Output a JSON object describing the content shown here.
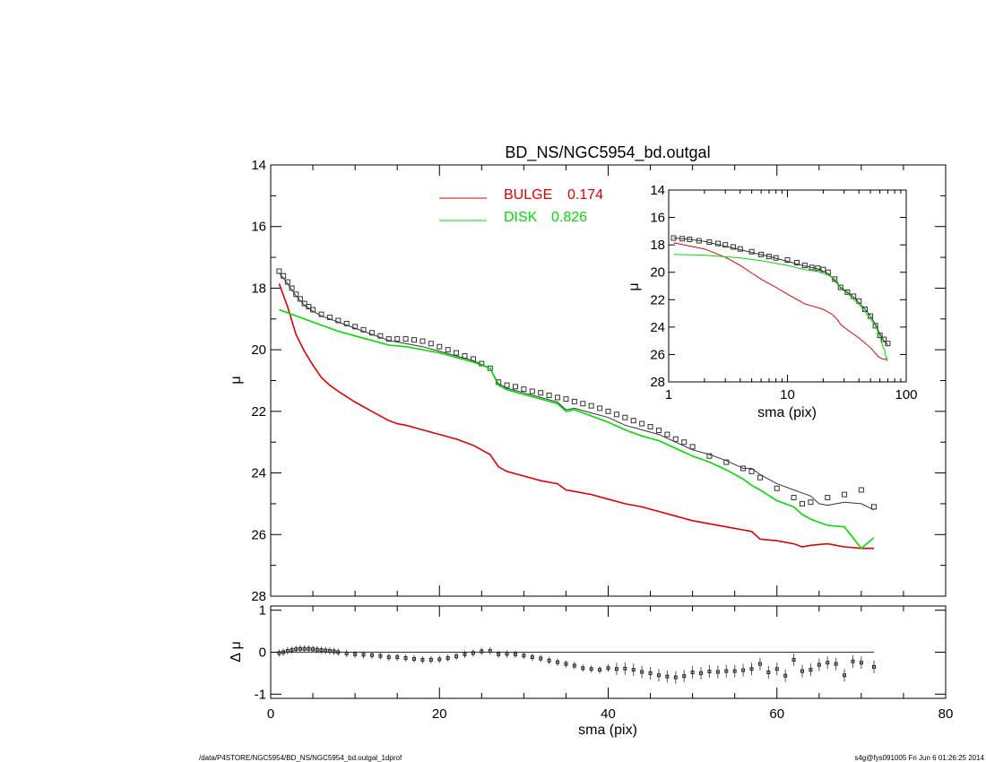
{
  "chart_data": [
    {
      "panel": "main",
      "type": "line",
      "title": "BD_NS/NGC5954_bd.outgal",
      "xlabel": "",
      "ylabel": "μ",
      "xlim": [
        0,
        80
      ],
      "ylim": [
        28,
        14
      ],
      "y_inverted": true,
      "y_ticks": [
        14,
        16,
        18,
        20,
        22,
        24,
        26,
        28
      ],
      "legend": [
        {
          "label": "BULGE",
          "value": "0.174",
          "color": "#e00000"
        },
        {
          "label": "DISK",
          "value": "0.826",
          "color": "#00dd00"
        }
      ],
      "legend_position": "top-center",
      "series": [
        {
          "name": "data",
          "style": "markers",
          "color": "#000000",
          "x": [
            1,
            1.5,
            2,
            2.5,
            3,
            3.5,
            4,
            4.5,
            5,
            6,
            7,
            8,
            9,
            10,
            11,
            12,
            13,
            14,
            15,
            16,
            17,
            18,
            19,
            20,
            21,
            22,
            23,
            24,
            25,
            26,
            27,
            28,
            29,
            30,
            31,
            32,
            33,
            34,
            35,
            36,
            37,
            38,
            39,
            40,
            41,
            42,
            43,
            44,
            45,
            46,
            47,
            48,
            49,
            50,
            52,
            54,
            56,
            57,
            58,
            60,
            62,
            63,
            64,
            66,
            68,
            70,
            71.5
          ],
          "y": [
            17.45,
            17.6,
            17.8,
            18.0,
            18.2,
            18.35,
            18.5,
            18.6,
            18.7,
            18.85,
            18.95,
            19.05,
            19.15,
            19.25,
            19.35,
            19.45,
            19.55,
            19.65,
            19.65,
            19.65,
            19.68,
            19.72,
            19.8,
            19.9,
            20.0,
            20.1,
            20.2,
            20.3,
            20.45,
            20.6,
            21.05,
            21.15,
            21.2,
            21.28,
            21.35,
            21.4,
            21.48,
            21.55,
            21.6,
            21.68,
            21.75,
            21.82,
            21.9,
            22.0,
            22.1,
            22.2,
            22.3,
            22.4,
            22.5,
            22.62,
            22.75,
            22.9,
            23.0,
            23.15,
            23.45,
            23.65,
            23.85,
            23.95,
            24.15,
            24.5,
            24.8,
            25.0,
            24.95,
            24.8,
            24.7,
            24.55,
            25.1
          ]
        },
        {
          "name": "model",
          "style": "line",
          "color": "#333333",
          "x": [
            1,
            2,
            3,
            4,
            5,
            6,
            7,
            8,
            10,
            12,
            14,
            16,
            18,
            20,
            22,
            24,
            26,
            27,
            28,
            30,
            32,
            34,
            35,
            36,
            38,
            40,
            42,
            44,
            46,
            48,
            50,
            52,
            54,
            56,
            57,
            58,
            60,
            62,
            64,
            65,
            66,
            68,
            70,
            71.5
          ],
          "y": [
            17.5,
            17.85,
            18.25,
            18.55,
            18.75,
            18.9,
            19.0,
            19.1,
            19.3,
            19.5,
            19.7,
            19.8,
            19.9,
            20.05,
            20.2,
            20.35,
            20.6,
            21.1,
            21.25,
            21.4,
            21.55,
            21.7,
            21.95,
            21.9,
            22.05,
            22.2,
            22.45,
            22.6,
            22.75,
            23.0,
            23.25,
            23.4,
            23.6,
            23.85,
            23.85,
            24.05,
            24.35,
            24.55,
            24.75,
            25.0,
            25.05,
            24.95,
            25.0,
            25.2
          ]
        },
        {
          "name": "BULGE 0.174",
          "style": "line",
          "color": "#e00000",
          "x": [
            1,
            2,
            3,
            4,
            5,
            6,
            7,
            8,
            10,
            12,
            14,
            14.5,
            15,
            16,
            18,
            20,
            22,
            24,
            26,
            27,
            28,
            30,
            32,
            34,
            35,
            36,
            38,
            40,
            42,
            44,
            46,
            48,
            50,
            52,
            54,
            56,
            57,
            58,
            60,
            62,
            63,
            64,
            66,
            68,
            70,
            71.5
          ],
          "y": [
            17.85,
            18.6,
            19.5,
            20.05,
            20.5,
            20.9,
            21.15,
            21.35,
            21.7,
            22.0,
            22.3,
            22.35,
            22.4,
            22.45,
            22.6,
            22.75,
            22.9,
            23.1,
            23.4,
            23.8,
            23.95,
            24.1,
            24.25,
            24.35,
            24.55,
            24.6,
            24.7,
            24.85,
            25.0,
            25.1,
            25.25,
            25.4,
            25.55,
            25.65,
            25.75,
            25.85,
            25.9,
            26.15,
            26.2,
            26.3,
            26.4,
            26.35,
            26.3,
            26.4,
            26.45,
            26.45
          ]
        },
        {
          "name": "DISK 0.826",
          "style": "line",
          "color": "#00dd00",
          "x": [
            1,
            2,
            4,
            6,
            8,
            10,
            12,
            14,
            16,
            18,
            20,
            22,
            24,
            26,
            27,
            28,
            30,
            32,
            34,
            35,
            36,
            38,
            40,
            42,
            44,
            46,
            48,
            50,
            52,
            54,
            56,
            57,
            58,
            60,
            62,
            63,
            64,
            66,
            68,
            70,
            71.5
          ],
          "y": [
            18.7,
            18.8,
            19.0,
            19.2,
            19.4,
            19.55,
            19.7,
            19.85,
            19.9,
            20.0,
            20.1,
            20.25,
            20.4,
            20.6,
            21.15,
            21.3,
            21.45,
            21.6,
            21.75,
            22.0,
            21.95,
            22.15,
            22.35,
            22.6,
            22.8,
            22.95,
            23.2,
            23.45,
            23.65,
            23.9,
            24.2,
            24.4,
            24.55,
            24.9,
            25.1,
            25.35,
            25.5,
            25.7,
            25.75,
            26.45,
            26.1
          ]
        }
      ]
    },
    {
      "panel": "inset",
      "type": "line",
      "xlabel": "sma (pix)",
      "ylabel": "μ",
      "x_scale": "log",
      "xlim": [
        1,
        100
      ],
      "ylim": [
        28,
        14
      ],
      "y_inverted": true,
      "x_tick_labels": [
        "1",
        "10",
        "100"
      ],
      "y_ticks": [
        14,
        16,
        18,
        20,
        22,
        24,
        26,
        28
      ],
      "series": [
        {
          "name": "data",
          "style": "markers",
          "color": "#000000",
          "x": [
            1.1,
            1.3,
            1.5,
            1.8,
            2.2,
            2.6,
            3,
            3.5,
            4,
            5,
            6,
            7,
            8,
            10,
            12,
            14,
            16,
            18,
            20,
            22,
            25,
            28,
            32,
            36,
            40,
            45,
            50,
            55,
            60,
            65,
            70
          ],
          "y": [
            17.5,
            17.55,
            17.6,
            17.7,
            17.8,
            17.9,
            18.0,
            18.15,
            18.3,
            18.5,
            18.7,
            18.85,
            18.95,
            19.1,
            19.3,
            19.5,
            19.65,
            19.7,
            19.8,
            20.0,
            20.5,
            21.1,
            21.45,
            21.75,
            22.1,
            22.7,
            23.2,
            23.9,
            24.6,
            24.9,
            25.2
          ]
        },
        {
          "name": "model",
          "style": "line",
          "color": "#333333",
          "x": [
            1.1,
            1.5,
            2,
            3,
            4,
            5,
            7,
            10,
            14,
            18,
            22,
            25,
            28,
            32,
            36,
            40,
            45,
            50,
            55,
            60,
            65,
            70
          ],
          "y": [
            17.5,
            17.6,
            17.75,
            18.1,
            18.35,
            18.55,
            18.85,
            19.2,
            19.55,
            19.75,
            20.1,
            20.6,
            21.1,
            21.45,
            21.8,
            22.2,
            22.7,
            23.2,
            23.8,
            24.5,
            25.0,
            25.3
          ]
        },
        {
          "name": "BULGE",
          "style": "line",
          "color": "#e00000",
          "x": [
            1.1,
            2,
            3,
            4,
            5,
            6,
            8,
            10,
            14,
            16,
            20,
            24,
            26,
            28,
            32,
            40,
            50,
            58,
            62,
            66,
            70
          ],
          "y": [
            17.85,
            18.3,
            18.9,
            19.5,
            20.05,
            20.5,
            21.1,
            21.6,
            22.3,
            22.45,
            22.7,
            23.1,
            23.4,
            23.8,
            24.2,
            24.8,
            25.5,
            26.15,
            26.3,
            26.35,
            26.45
          ]
        },
        {
          "name": "DISK",
          "style": "line",
          "color": "#00dd00",
          "x": [
            1.1,
            2,
            4,
            6,
            8,
            10,
            14,
            18,
            22,
            26,
            28,
            32,
            36,
            40,
            45,
            50,
            55,
            60,
            64,
            66,
            68,
            70
          ],
          "y": [
            18.7,
            18.75,
            18.95,
            19.15,
            19.35,
            19.5,
            19.8,
            19.95,
            20.2,
            20.6,
            21.2,
            21.55,
            21.95,
            22.35,
            22.9,
            23.4,
            23.9,
            24.7,
            25.5,
            25.7,
            26.4,
            26.2
          ]
        }
      ]
    },
    {
      "panel": "residual",
      "type": "scatter",
      "xlabel": "sma (pix)",
      "ylabel": "Δ μ",
      "xlim": [
        0,
        80
      ],
      "ylim": [
        -1.1,
        1.1
      ],
      "x_ticks": [
        0,
        20,
        40,
        60,
        80
      ],
      "y_ticks": [
        -1,
        0,
        1
      ],
      "zero_line": true,
      "series": [
        {
          "name": "residuals",
          "style": "markers-with-errorbars",
          "color": "#000000",
          "x": [
            1,
            1.5,
            2,
            2.5,
            3,
            3.5,
            4,
            4.5,
            5,
            5.5,
            6,
            6.5,
            7,
            7.5,
            8,
            9,
            10,
            11,
            12,
            13,
            14,
            15,
            16,
            17,
            18,
            19,
            20,
            21,
            22,
            23,
            24,
            25,
            26,
            27,
            28,
            29,
            30,
            31,
            32,
            33,
            34,
            35,
            36,
            37,
            38,
            39,
            40,
            41,
            42,
            43,
            44,
            45,
            46,
            47,
            48,
            49,
            50,
            51,
            52,
            53,
            54,
            55,
            56,
            57,
            58,
            59,
            60,
            61,
            62,
            63,
            64,
            65,
            66,
            67,
            68,
            69,
            70,
            71.5
          ],
          "y": [
            -0.02,
            0.0,
            0.03,
            0.05,
            0.07,
            0.08,
            0.08,
            0.08,
            0.07,
            0.06,
            0.05,
            0.04,
            0.03,
            0.02,
            0.0,
            -0.03,
            -0.05,
            -0.06,
            -0.07,
            -0.09,
            -0.12,
            -0.12,
            -0.14,
            -0.16,
            -0.18,
            -0.18,
            -0.17,
            -0.14,
            -0.1,
            -0.05,
            -0.02,
            0.02,
            0.03,
            -0.05,
            -0.04,
            -0.05,
            -0.08,
            -0.12,
            -0.15,
            -0.2,
            -0.24,
            -0.28,
            -0.32,
            -0.38,
            -0.4,
            -0.42,
            -0.38,
            -0.4,
            -0.39,
            -0.42,
            -0.47,
            -0.5,
            -0.55,
            -0.58,
            -0.6,
            -0.57,
            -0.48,
            -0.5,
            -0.46,
            -0.47,
            -0.45,
            -0.45,
            -0.43,
            -0.4,
            -0.28,
            -0.48,
            -0.4,
            -0.56,
            -0.18,
            -0.45,
            -0.42,
            -0.3,
            -0.25,
            -0.28,
            -0.55,
            -0.22,
            -0.25,
            -0.35
          ]
        }
      ]
    }
  ],
  "footer": {
    "left": "/data/P4STORE/NGC5954/BD_NS/NGC5954_bd.outgal_1dprof",
    "right": "s4g@fys091005  Fri Jun  6 01:26:25 2014"
  }
}
